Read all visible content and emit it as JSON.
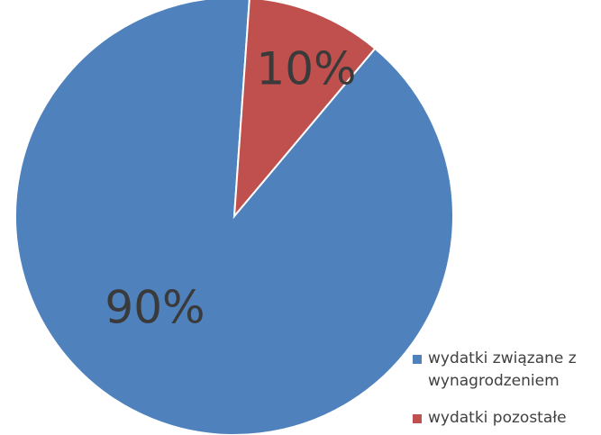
{
  "chart_data": {
    "type": "pie",
    "categories": [
      "wydatki związane z wynagrodzeniem",
      "wydatki pozostałe"
    ],
    "values": [
      90,
      10
    ],
    "value_labels": [
      "90%",
      "10%"
    ],
    "colors": [
      "#4f81bd",
      "#c0504d"
    ],
    "legend": "right"
  }
}
